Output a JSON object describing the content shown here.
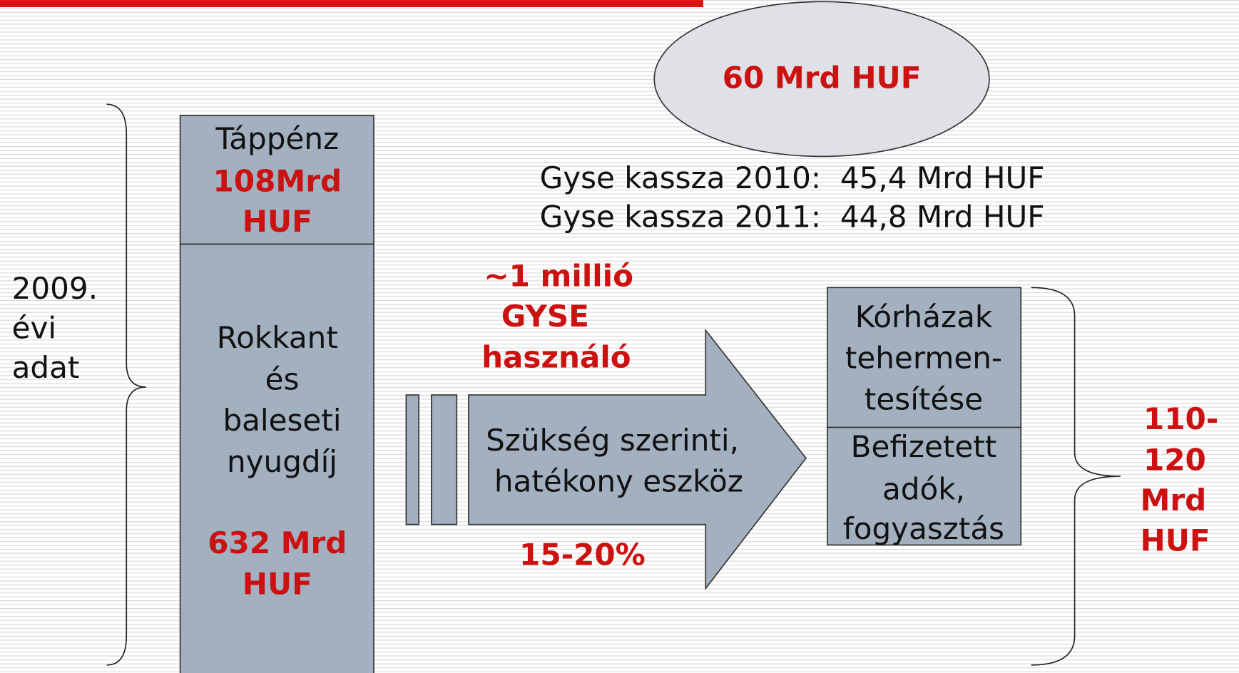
{
  "ellipse": {
    "label": "60 Mrd HUF"
  },
  "gyse": {
    "lines": [
      "Gyse kassza 2010:  45,4 Mrd HUF",
      "Gyse kassza 2011:  44,8 Mrd HUF"
    ]
  },
  "left_brace": {
    "lines": [
      "2009.",
      "évi",
      "adat"
    ]
  },
  "column": {
    "top": {
      "title": "Táppénz",
      "amount": [
        "108Mrd",
        "HUF"
      ]
    },
    "bottom": {
      "title": [
        "Rokkant",
        "és",
        "baleseti",
        "nyugdíj"
      ],
      "amount": [
        "632 Mrd",
        "HUF"
      ]
    }
  },
  "users": {
    "lines": [
      "~1 millió",
      "GYSE",
      "használó"
    ]
  },
  "arrow": {
    "lines": [
      "Szükség szerinti,",
      "hatékony eszköz"
    ],
    "percent": "15-20%"
  },
  "result": {
    "top": [
      "Kórházak",
      "tehermen-",
      "tesítése"
    ],
    "bottom": [
      "Befizetett",
      "adók,",
      "fogyasztás"
    ]
  },
  "right_brace": {
    "lines": [
      "110-",
      "120",
      "Mrd",
      "HUF"
    ]
  }
}
